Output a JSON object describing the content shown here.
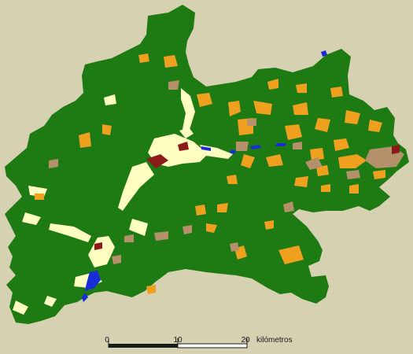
{
  "colors": {
    "background": "#d6d1b1",
    "forest": "#1e7a12",
    "agriculture": "#f0a01f",
    "pasture_shrub": "#b4916b",
    "open_clearing": "#ffffc2",
    "urban": "#8b1a1a",
    "water": "#1a2bd8",
    "scale_bar": "#1a1a1a"
  },
  "scale_bar": {
    "ticks": [
      "0",
      "10",
      "20"
    ],
    "unit": "kilómetros"
  }
}
